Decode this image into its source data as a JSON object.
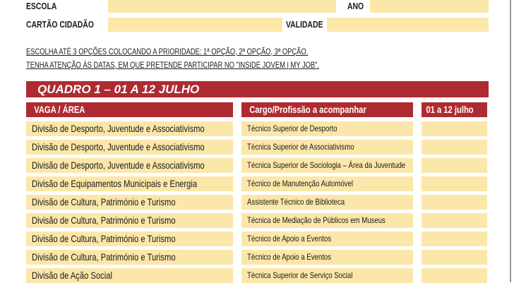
{
  "form": {
    "escola_label": "ESCOLA",
    "ano_label": "ANO",
    "cartao_label": "CARTÃO CIDADÃO",
    "validade_label": "VALIDADE"
  },
  "instructions": [
    "ESCOLHA ATÉ 3 OPÇÕES COLOCANDO A PRIORIDADE: 1ª OPÇÃO, 2ª OPÇÃO, 3ª OPÇÃO.",
    "TENHA ATENÇÃO ÀS DATAS, EM QUE PRETENDE PARTICIPAR NO \"INSIDE JOVEM | MY JOB\"."
  ],
  "quadro": {
    "title": "QUADRO 1 – 01 A 12 JULHO",
    "headers": [
      "VAGA / ÁREA",
      "Cargo/Profissão a acompanhar",
      "01  a 12 julho"
    ],
    "rows": [
      {
        "vaga": "Divisão de Desporto, Juventude e Associativismo",
        "cargo": "Técnico Superior de Desporto"
      },
      {
        "vaga": "Divisão de Desporto, Juventude e Associativismo",
        "cargo": "Técnica Superior de Associativismo"
      },
      {
        "vaga": "Divisão de Desporto, Juventude e Associativismo",
        "cargo": "Técnica Superior de Sociologia – Área da Juventude"
      },
      {
        "vaga": "Divisão de Equipamentos Municipais e Energia",
        "cargo": "Técnico de Manutenção Automóvel"
      },
      {
        "vaga": "Divisão de Cultura, Património e Turismo",
        "cargo": "Assistente Técnico de Biblioteca"
      },
      {
        "vaga": "Divisão de Cultura, Património e Turismo",
        "cargo": "Técnica de Mediação de Públicos em Museus"
      },
      {
        "vaga": "Divisão de Cultura, Património e Turismo",
        "cargo": "Técnico de Apoio a Eventos"
      },
      {
        "vaga": "Divisão de Cultura, Património e Turismo",
        "cargo": "Técnico de Apoio a Eventos"
      },
      {
        "vaga": "Divisão de Ação Social",
        "cargo": "Técnica Superior de Serviço Social"
      }
    ]
  },
  "colors": {
    "accent": "#af2b32",
    "field": "#fbe7a9"
  }
}
